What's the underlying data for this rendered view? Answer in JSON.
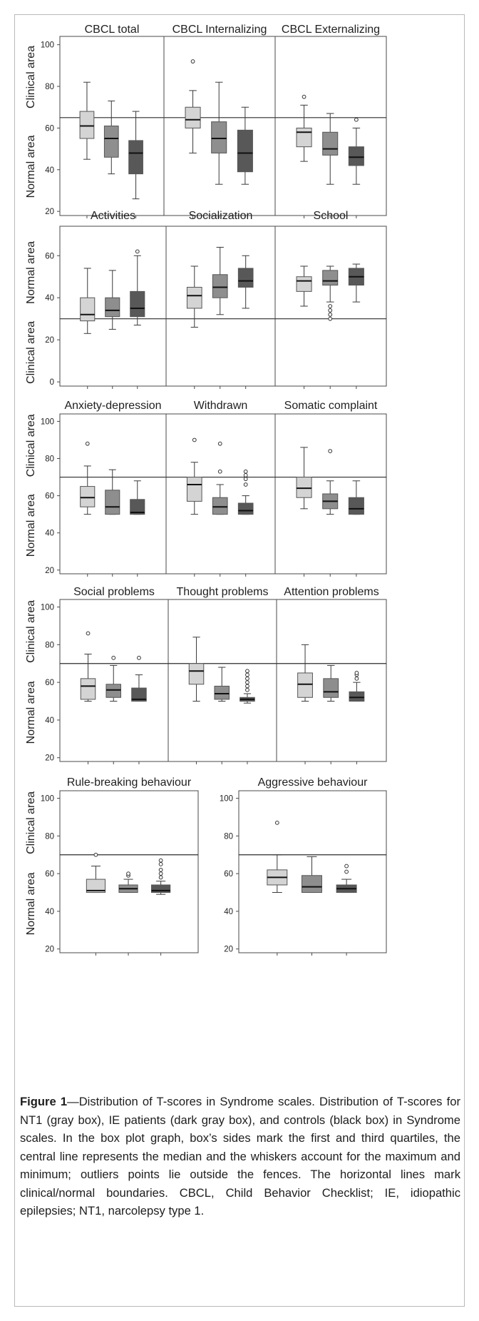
{
  "colors": {
    "nt1": "#d4d4d4",
    "ie": "#8e8e8e",
    "controls": "#585858",
    "outline": "#3a3a3a",
    "frame": "#b9b9b9"
  },
  "chart_data": [
    {
      "type": "box",
      "title": "CBCL total",
      "ylabel_upper": "Clinical area",
      "ylabel_lower": "Normal area",
      "ylim": [
        18,
        104
      ],
      "yticks": [
        20,
        40,
        60,
        80,
        100
      ],
      "threshold": 65,
      "boxes": [
        {
          "group": "NT1",
          "min": 45,
          "q1": 55,
          "median": 61,
          "q3": 68,
          "max": 82,
          "outliers": []
        },
        {
          "group": "IE",
          "min": 38,
          "q1": 46,
          "median": 55,
          "q3": 61,
          "max": 73,
          "outliers": []
        },
        {
          "group": "Controls",
          "min": 26,
          "q1": 38,
          "median": 48,
          "q3": 54,
          "max": 68,
          "outliers": []
        }
      ]
    },
    {
      "type": "box",
      "title": "CBCL Internalizing",
      "ylim": [
        18,
        104
      ],
      "threshold": 65,
      "boxes": [
        {
          "group": "NT1",
          "min": 48,
          "q1": 60,
          "median": 64,
          "q3": 70,
          "max": 78,
          "outliers": [
            92
          ]
        },
        {
          "group": "IE",
          "min": 33,
          "q1": 48,
          "median": 55,
          "q3": 63,
          "max": 82,
          "outliers": []
        },
        {
          "group": "Controls",
          "min": 33,
          "q1": 39,
          "median": 48,
          "q3": 59,
          "max": 70,
          "outliers": []
        }
      ]
    },
    {
      "type": "box",
      "title": "CBCL Externalizing",
      "ylim": [
        18,
        104
      ],
      "threshold": 65,
      "boxes": [
        {
          "group": "NT1",
          "min": 44,
          "q1": 51,
          "median": 58,
          "q3": 60,
          "max": 71,
          "outliers": [
            75
          ]
        },
        {
          "group": "IE",
          "min": 33,
          "q1": 47,
          "median": 50,
          "q3": 58,
          "max": 67,
          "outliers": []
        },
        {
          "group": "Controls",
          "min": 33,
          "q1": 42,
          "median": 46,
          "q3": 51,
          "max": 60,
          "outliers": [
            64
          ]
        }
      ]
    },
    {
      "type": "box",
      "title": "Activities",
      "ylabel_upper": "Normal area",
      "ylabel_lower": "Clinical area",
      "ylim": [
        -2,
        74
      ],
      "yticks": [
        0,
        20,
        40,
        60
      ],
      "threshold": 30,
      "boxes": [
        {
          "group": "NT1",
          "min": 23,
          "q1": 29,
          "median": 32,
          "q3": 40,
          "max": 54,
          "outliers": []
        },
        {
          "group": "IE",
          "min": 25,
          "q1": 31,
          "median": 34,
          "q3": 40,
          "max": 53,
          "outliers": []
        },
        {
          "group": "Controls",
          "min": 27,
          "q1": 31,
          "median": 35,
          "q3": 43,
          "max": 60,
          "outliers": [
            62
          ]
        }
      ]
    },
    {
      "type": "box",
      "title": "Socialization",
      "ylim": [
        -2,
        74
      ],
      "threshold": 30,
      "boxes": [
        {
          "group": "NT1",
          "min": 26,
          "q1": 35,
          "median": 41,
          "q3": 45,
          "max": 55,
          "outliers": []
        },
        {
          "group": "IE",
          "min": 32,
          "q1": 40,
          "median": 45,
          "q3": 51,
          "max": 64,
          "outliers": []
        },
        {
          "group": "Controls",
          "min": 35,
          "q1": 45,
          "median": 48,
          "q3": 54,
          "max": 60,
          "outliers": []
        }
      ]
    },
    {
      "type": "box",
      "title": "School",
      "ylim": [
        -2,
        74
      ],
      "threshold": 30,
      "boxes": [
        {
          "group": "NT1",
          "min": 36,
          "q1": 43,
          "median": 48,
          "q3": 50,
          "max": 55,
          "outliers": []
        },
        {
          "group": "IE",
          "min": 38,
          "q1": 46,
          "median": 48,
          "q3": 53,
          "max": 55,
          "outliers": [
            36,
            34,
            32,
            30
          ]
        },
        {
          "group": "Controls",
          "min": 38,
          "q1": 46,
          "median": 50,
          "q3": 54,
          "max": 56,
          "outliers": []
        }
      ]
    },
    {
      "type": "box",
      "title": "Anxiety-depression",
      "ylabel_upper": "Clinical area",
      "ylabel_lower": "Normal area",
      "ylim": [
        18,
        104
      ],
      "yticks": [
        20,
        40,
        60,
        80,
        100
      ],
      "threshold": 70,
      "boxes": [
        {
          "group": "NT1",
          "min": 50,
          "q1": 54,
          "median": 59,
          "q3": 65,
          "max": 76,
          "outliers": [
            88
          ]
        },
        {
          "group": "IE",
          "min": 50,
          "q1": 50,
          "median": 54,
          "q3": 63,
          "max": 74,
          "outliers": []
        },
        {
          "group": "Controls",
          "min": 50,
          "q1": 50,
          "median": 51,
          "q3": 58,
          "max": 68,
          "outliers": []
        }
      ]
    },
    {
      "type": "box",
      "title": "Withdrawn",
      "ylim": [
        18,
        104
      ],
      "threshold": 70,
      "boxes": [
        {
          "group": "NT1",
          "min": 50,
          "q1": 57,
          "median": 66,
          "q3": 70,
          "max": 78,
          "outliers": [
            90
          ]
        },
        {
          "group": "IE",
          "min": 50,
          "q1": 50,
          "median": 54,
          "q3": 59,
          "max": 66,
          "outliers": [
            73,
            88
          ]
        },
        {
          "group": "Controls",
          "min": 50,
          "q1": 50,
          "median": 52,
          "q3": 56,
          "max": 60,
          "outliers": [
            66,
            69,
            71,
            73
          ]
        }
      ]
    },
    {
      "type": "box",
      "title": "Somatic complaint",
      "ylim": [
        18,
        104
      ],
      "threshold": 70,
      "boxes": [
        {
          "group": "NT1",
          "min": 53,
          "q1": 59,
          "median": 64,
          "q3": 70,
          "max": 86,
          "outliers": []
        },
        {
          "group": "IE",
          "min": 50,
          "q1": 53,
          "median": 57,
          "q3": 61,
          "max": 68,
          "outliers": [
            84
          ]
        },
        {
          "group": "Controls",
          "min": 50,
          "q1": 50,
          "median": 53,
          "q3": 59,
          "max": 68,
          "outliers": []
        }
      ]
    },
    {
      "type": "box",
      "title": "Social problems",
      "ylabel_upper": "Clinical area",
      "ylabel_lower": "Normal area",
      "ylim": [
        18,
        104
      ],
      "yticks": [
        20,
        40,
        60,
        80,
        100
      ],
      "threshold": 70,
      "boxes": [
        {
          "group": "NT1",
          "min": 50,
          "q1": 51,
          "median": 58,
          "q3": 62,
          "max": 75,
          "outliers": [
            86
          ]
        },
        {
          "group": "IE",
          "min": 50,
          "q1": 52,
          "median": 56,
          "q3": 59,
          "max": 69,
          "outliers": [
            73
          ]
        },
        {
          "group": "Controls",
          "min": 50,
          "q1": 50,
          "median": 51,
          "q3": 57,
          "max": 64,
          "outliers": [
            73
          ]
        }
      ]
    },
    {
      "type": "box",
      "title": "Thought problems",
      "ylim": [
        18,
        104
      ],
      "threshold": 70,
      "boxes": [
        {
          "group": "NT1",
          "min": 50,
          "q1": 59,
          "median": 66,
          "q3": 70,
          "max": 84,
          "outliers": []
        },
        {
          "group": "IE",
          "min": 50,
          "q1": 51,
          "median": 54,
          "q3": 58,
          "max": 68,
          "outliers": []
        },
        {
          "group": "Controls",
          "min": 49,
          "q1": 50,
          "median": 51,
          "q3": 52,
          "max": 54,
          "outliers": [
            56,
            58,
            60,
            62,
            64,
            66
          ]
        }
      ]
    },
    {
      "type": "box",
      "title": "Attention problems",
      "ylim": [
        18,
        104
      ],
      "threshold": 70,
      "boxes": [
        {
          "group": "NT1",
          "min": 50,
          "q1": 52,
          "median": 59,
          "q3": 65,
          "max": 80,
          "outliers": []
        },
        {
          "group": "IE",
          "min": 50,
          "q1": 52,
          "median": 55,
          "q3": 62,
          "max": 69,
          "outliers": []
        },
        {
          "group": "Controls",
          "min": 50,
          "q1": 50,
          "median": 52,
          "q3": 55,
          "max": 60,
          "outliers": [
            62,
            64,
            65
          ]
        }
      ]
    },
    {
      "type": "box",
      "title": "Rule-breaking behaviour",
      "ylabel_upper": "Clinical area",
      "ylabel_lower": "Normal area",
      "ylim": [
        18,
        104
      ],
      "yticks": [
        20,
        40,
        60,
        80,
        100
      ],
      "threshold": 70,
      "boxes": [
        {
          "group": "NT1",
          "min": 50,
          "q1": 50,
          "median": 51,
          "q3": 57,
          "max": 64,
          "outliers": [
            70
          ]
        },
        {
          "group": "IE",
          "min": 50,
          "q1": 50,
          "median": 52,
          "q3": 54,
          "max": 57,
          "outliers": [
            59,
            60
          ]
        },
        {
          "group": "Controls",
          "min": 49,
          "q1": 50,
          "median": 51,
          "q3": 54,
          "max": 56,
          "outliers": [
            58,
            60,
            62,
            65,
            67
          ]
        }
      ]
    },
    {
      "type": "box",
      "title": "Aggressive behaviour",
      "ylim": [
        18,
        104
      ],
      "yticks": [
        20,
        40,
        60,
        80,
        100
      ],
      "threshold": 70,
      "boxes": [
        {
          "group": "NT1",
          "min": 50,
          "q1": 54,
          "median": 58,
          "q3": 62,
          "max": 70,
          "outliers": [
            87
          ]
        },
        {
          "group": "IE",
          "min": 50,
          "q1": 50,
          "median": 53,
          "q3": 59,
          "max": 69,
          "outliers": []
        },
        {
          "group": "Controls",
          "min": 50,
          "q1": 50,
          "median": 52,
          "q3": 54,
          "max": 57,
          "outliers": [
            61,
            64
          ]
        }
      ]
    }
  ],
  "caption": {
    "label": "Figure 1",
    "text": "—Distribution of T-scores in Syndrome scales. Distribution of T-scores for NT1 (gray box), IE patients (dark gray box), and controls (black box) in Syndrome scales. In the box plot graph, box’s sides mark the first and third quartiles, the central line represents the median and the whiskers account for the maximum and minimum; outliers points lie outside the fences. The horizontal lines mark clinical/normal boundaries. CBCL, Child Behavior Checklist; IE, idiopathic epilepsies; NT1, narcolepsy type 1."
  }
}
